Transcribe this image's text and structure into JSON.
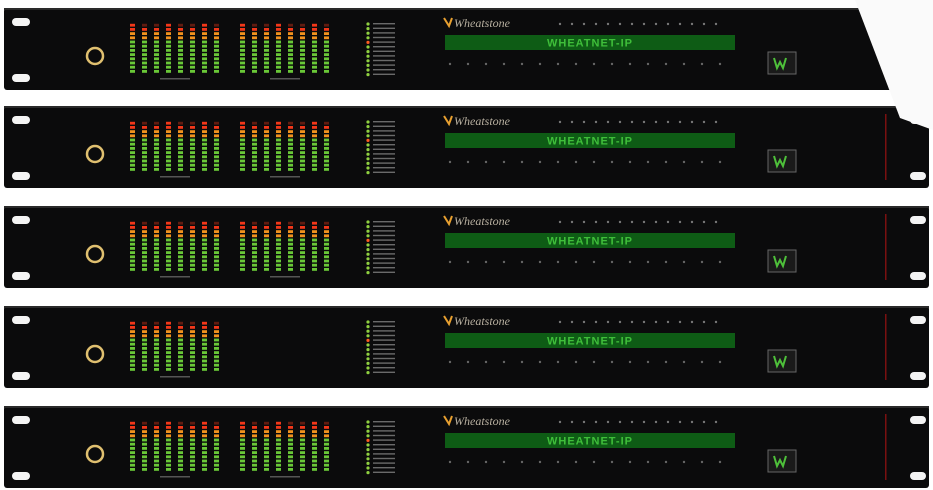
{
  "units": [
    {
      "brand": "Wheatstone",
      "display": "WHEATNET-IP"
    },
    {
      "brand": "Wheatstone",
      "display": "WHEATNET-IP"
    },
    {
      "brand": "Wheatstone",
      "display": "WHEATNET-IP"
    },
    {
      "brand": "Wheatstone",
      "display": "WHEATNET-IP"
    },
    {
      "brand": "Wheatstone",
      "display": "WHEATNET-IP"
    }
  ]
}
